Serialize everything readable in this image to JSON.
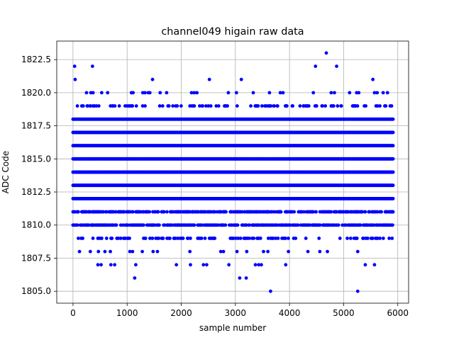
{
  "chart_data": {
    "type": "scatter",
    "title": "channel049 higain raw data",
    "xlabel": "sample number",
    "ylabel": "ADC Code",
    "xlim": [
      -300,
      6200
    ],
    "ylim": [
      1804.1,
      1823.9
    ],
    "xticks": [
      0,
      1000,
      2000,
      3000,
      4000,
      5000,
      6000
    ],
    "yticks": [
      1805.0,
      1807.5,
      1810.0,
      1812.5,
      1815.0,
      1817.5,
      1820.0,
      1822.5
    ],
    "xtick_labels": [
      "0",
      "1000",
      "2000",
      "3000",
      "4000",
      "5000",
      "6000"
    ],
    "ytick_labels": [
      "1805.0",
      "1807.5",
      "1810.0",
      "1812.5",
      "1815.0",
      "1817.5",
      "1820.0",
      "1822.5"
    ],
    "grid": true,
    "marker_color": "#0000ff",
    "x_range": [
      0,
      5915
    ],
    "dense_levels": [
      1812,
      1813,
      1814,
      1815,
      1816,
      1817,
      1818
    ],
    "medium_levels": [
      1810,
      1811
    ],
    "sparse_levels": [
      1809,
      1819
    ],
    "outliers": [
      {
        "x": 30,
        "y": 1822
      },
      {
        "x": 40,
        "y": 1821
      },
      {
        "x": 360,
        "y": 1822
      },
      {
        "x": 1470,
        "y": 1821
      },
      {
        "x": 2520,
        "y": 1821
      },
      {
        "x": 3110,
        "y": 1821
      },
      {
        "x": 4480,
        "y": 1822
      },
      {
        "x": 4680,
        "y": 1823
      },
      {
        "x": 4870,
        "y": 1822
      },
      {
        "x": 5540,
        "y": 1821
      },
      {
        "x": 250,
        "y": 1820
      },
      {
        "x": 330,
        "y": 1820
      },
      {
        "x": 370,
        "y": 1820
      },
      {
        "x": 530,
        "y": 1820
      },
      {
        "x": 640,
        "y": 1820
      },
      {
        "x": 1080,
        "y": 1820
      },
      {
        "x": 1110,
        "y": 1820
      },
      {
        "x": 1290,
        "y": 1820
      },
      {
        "x": 1330,
        "y": 1820
      },
      {
        "x": 1390,
        "y": 1820
      },
      {
        "x": 1420,
        "y": 1820
      },
      {
        "x": 1610,
        "y": 1820
      },
      {
        "x": 1730,
        "y": 1820
      },
      {
        "x": 2190,
        "y": 1820
      },
      {
        "x": 2240,
        "y": 1820
      },
      {
        "x": 2290,
        "y": 1820
      },
      {
        "x": 2870,
        "y": 1820
      },
      {
        "x": 3020,
        "y": 1820
      },
      {
        "x": 3330,
        "y": 1820
      },
      {
        "x": 3630,
        "y": 1820
      },
      {
        "x": 3830,
        "y": 1820
      },
      {
        "x": 3880,
        "y": 1820
      },
      {
        "x": 4440,
        "y": 1820
      },
      {
        "x": 4770,
        "y": 1820
      },
      {
        "x": 4830,
        "y": 1820
      },
      {
        "x": 5110,
        "y": 1820
      },
      {
        "x": 5240,
        "y": 1820
      },
      {
        "x": 5280,
        "y": 1820
      },
      {
        "x": 5570,
        "y": 1820
      },
      {
        "x": 5620,
        "y": 1820
      },
      {
        "x": 5730,
        "y": 1820
      },
      {
        "x": 5810,
        "y": 1820
      },
      {
        "x": 120,
        "y": 1808
      },
      {
        "x": 320,
        "y": 1808
      },
      {
        "x": 470,
        "y": 1808
      },
      {
        "x": 590,
        "y": 1808
      },
      {
        "x": 690,
        "y": 1808
      },
      {
        "x": 1050,
        "y": 1808
      },
      {
        "x": 1100,
        "y": 1808
      },
      {
        "x": 1280,
        "y": 1808
      },
      {
        "x": 1480,
        "y": 1808
      },
      {
        "x": 1560,
        "y": 1808
      },
      {
        "x": 2160,
        "y": 1808
      },
      {
        "x": 2730,
        "y": 1808
      },
      {
        "x": 2780,
        "y": 1808
      },
      {
        "x": 3030,
        "y": 1808
      },
      {
        "x": 3210,
        "y": 1808
      },
      {
        "x": 3520,
        "y": 1808
      },
      {
        "x": 3600,
        "y": 1808
      },
      {
        "x": 3980,
        "y": 1808
      },
      {
        "x": 4340,
        "y": 1808
      },
      {
        "x": 4560,
        "y": 1808
      },
      {
        "x": 4700,
        "y": 1808
      },
      {
        "x": 5260,
        "y": 1808
      },
      {
        "x": 460,
        "y": 1807
      },
      {
        "x": 520,
        "y": 1807
      },
      {
        "x": 700,
        "y": 1807
      },
      {
        "x": 770,
        "y": 1807
      },
      {
        "x": 1160,
        "y": 1807
      },
      {
        "x": 1910,
        "y": 1807
      },
      {
        "x": 2170,
        "y": 1807
      },
      {
        "x": 2410,
        "y": 1807
      },
      {
        "x": 2470,
        "y": 1807
      },
      {
        "x": 2880,
        "y": 1807
      },
      {
        "x": 3370,
        "y": 1807
      },
      {
        "x": 3430,
        "y": 1807
      },
      {
        "x": 3480,
        "y": 1807
      },
      {
        "x": 3930,
        "y": 1807
      },
      {
        "x": 5400,
        "y": 1807
      },
      {
        "x": 5570,
        "y": 1807
      },
      {
        "x": 1140,
        "y": 1806
      },
      {
        "x": 3080,
        "y": 1806
      },
      {
        "x": 3200,
        "y": 1806
      },
      {
        "x": 3650,
        "y": 1805
      },
      {
        "x": 5260,
        "y": 1805
      }
    ]
  }
}
